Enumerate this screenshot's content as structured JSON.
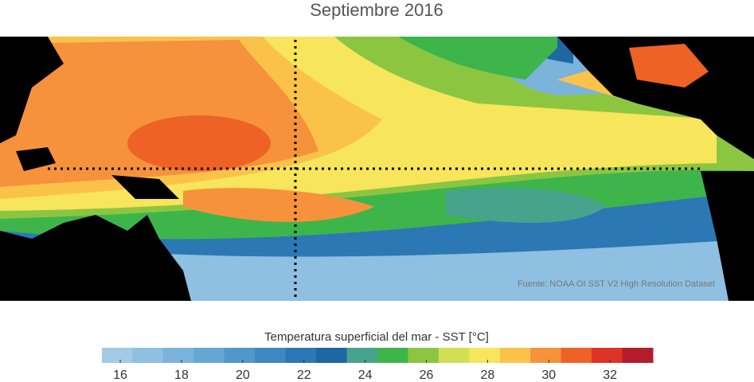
{
  "title": "Septiembre 2016",
  "source": "Fuente: NOAA OI SST V2 High Resolution Dataset",
  "colorbar": {
    "label": "Temperatura superficial del mar - SST  [°C]",
    "lim": [
      15.4,
      33.4
    ],
    "ticks": [
      16,
      18,
      20,
      22,
      24,
      26,
      28,
      30,
      32
    ],
    "colors": [
      "#a3cbe6",
      "#8fc0e1",
      "#7bb3da",
      "#66a6d3",
      "#5197ca",
      "#3d88c0",
      "#2b78b4",
      "#1e67a3",
      "#47a38c",
      "#3db54b",
      "#8cc641",
      "#d2df55",
      "#f7e55b",
      "#fbc24a",
      "#f6923b",
      "#ee6226",
      "#dd3427",
      "#b51c2b"
    ]
  }
}
